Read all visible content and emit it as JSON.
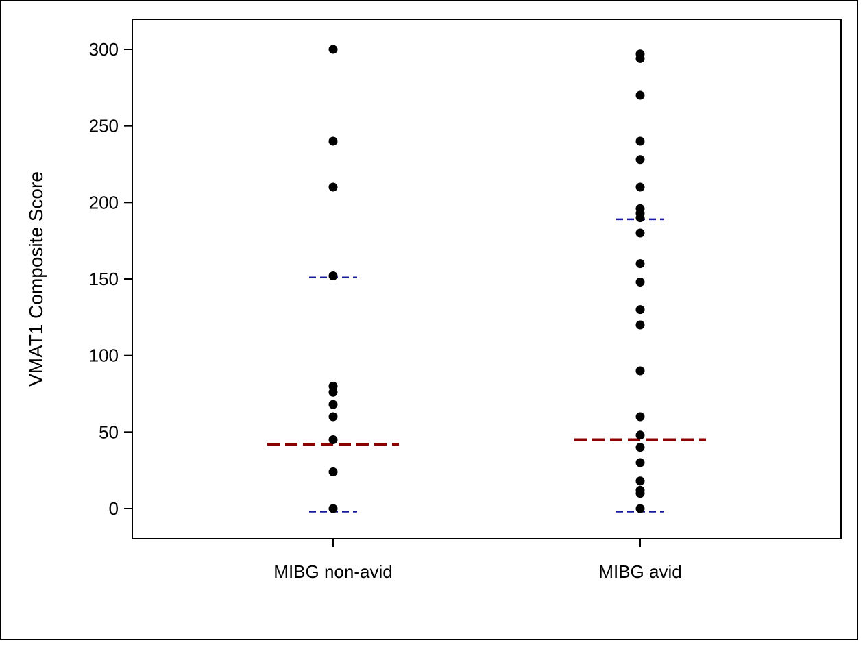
{
  "chart_data": {
    "type": "scatter",
    "title": "",
    "xlabel": "",
    "ylabel": "VMAT1 Composite Score",
    "ylim": [
      -20,
      320
    ],
    "yticks": [
      0,
      50,
      100,
      150,
      200,
      250,
      300
    ],
    "categories": [
      "MIBG non-avid",
      "MIBG avid"
    ],
    "grid": false,
    "legend": "none",
    "series": [
      {
        "category": "MIBG non-avid",
        "points": [
          300,
          240,
          210,
          152,
          80,
          76,
          68,
          60,
          45,
          24,
          0
        ],
        "median": 42,
        "range_low": -2,
        "range_high": 151
      },
      {
        "category": "MIBG avid",
        "points": [
          297,
          294,
          270,
          240,
          228,
          210,
          196,
          193,
          190,
          180,
          160,
          148,
          130,
          120,
          90,
          60,
          48,
          40,
          30,
          18,
          12,
          10,
          0
        ],
        "median": 45,
        "range_low": -2,
        "range_high": 189
      }
    ],
    "colors": {
      "points": "#000000",
      "median": "#8b0000",
      "range": "#1a1aa6",
      "axis": "#000000"
    }
  }
}
